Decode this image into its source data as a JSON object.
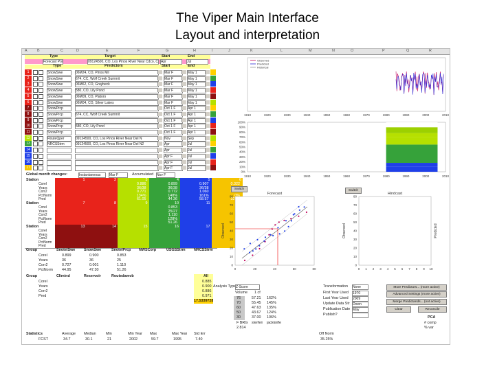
{
  "slide": {
    "title_line1": "The Viper Main Interface",
    "title_line2": "Layout and interpretation"
  },
  "col_letters": [
    "A",
    "B",
    "C",
    "D",
    "E",
    "F",
    "G",
    "H",
    "I",
    "J",
    "K",
    "L",
    "M",
    "N",
    "O",
    "P",
    "Q",
    "R"
  ],
  "headers": {
    "type": "Type",
    "target": "Target",
    "start": "Start",
    "end": "End",
    "predictors": "Predictors"
  },
  "target_row": {
    "type": "Forecast Point",
    "target": "09124500, CO, Los Pinos River Near Cdco, Co",
    "start": "Apr",
    "end": "Jul"
  },
  "predictor_rows": [
    {
      "n": "1",
      "type": "SnowSwe",
      "predictor": "06M24, CO, Pinos Mil",
      "start": "Mar F",
      "end": "May 1"
    },
    {
      "n": "2",
      "type": "SnowSwe",
      "predictor": "674, CC, Wolf Creek Summit",
      "start": "Mar F",
      "end": "May 1"
    },
    {
      "n": "3",
      "type": "SnowSwe",
      "predictor": "06M62, CO, Graybeck",
      "start": "Mar F",
      "end": "May 1"
    },
    {
      "n": "4",
      "type": "SnowSwe",
      "predictor": "580, CO, Lily Pond",
      "start": "Mar F",
      "end": "May 1"
    },
    {
      "n": "5",
      "type": "SnowSwe",
      "predictor": "06M09, CO, Platoro",
      "start": "Mar F",
      "end": "May 1"
    },
    {
      "n": "6",
      "type": "SnowSwe",
      "predictor": "06M04, CO, Silver Lakes",
      "start": "Mar F",
      "end": "May 1"
    },
    {
      "n": "7",
      "type": "SnowPrcp",
      "predictor": "",
      "start": "Oct 1 F",
      "end": "Apr 1"
    },
    {
      "n": "8",
      "type": "SnowPrcp",
      "predictor": "674, CC, Wolf Creek Summit",
      "start": "Oct 1 F",
      "end": "Apr 1"
    },
    {
      "n": "9",
      "type": "SnowPrcp",
      "predictor": "",
      "start": "Oct 1 F",
      "end": "Apr 1"
    },
    {
      "n": "10",
      "type": "SnowPrcp",
      "predictor": "580, CO, Lily Pond",
      "start": "Oct 1 F",
      "end": "Apr 1"
    },
    {
      "n": "11",
      "type": "SnowPrcp",
      "predictor": "",
      "start": "Oct 1 F",
      "end": "Apr 1"
    },
    {
      "n": "12",
      "type": "RouteQper",
      "predictor": "09124500, CO, Los Pinos River Near Del N",
      "start": "Nov",
      "end": "Sep"
    },
    {
      "n": "13",
      "type": "NRCSStrm",
      "predictor": "09124500, CO, Los Pinos River Near Del N2",
      "start": "Apr",
      "end": "Jul"
    },
    {
      "n": "14",
      "type": "",
      "predictor": "",
      "start": "Apr",
      "end": "Jul"
    },
    {
      "n": "15",
      "type": "",
      "predictor": "",
      "start": "Apr F",
      "end": "Jul"
    },
    {
      "n": "16",
      "type": "",
      "predictor": "",
      "start": "Apr F",
      "end": "Jul"
    },
    {
      "n": "17",
      "type": "",
      "predictor": "",
      "start": "Apr F",
      "end": "Jul"
    }
  ],
  "global_row": {
    "label": "Global month changes:",
    "mode": "Instantaneous",
    "month1": "Mar F",
    "accum": "Accumulated",
    "month2": "Nov F"
  },
  "station_block_labels": [
    "Corel",
    "Years",
    "Corr2",
    "PctNorm",
    "Pred"
  ],
  "station_label": "Station",
  "station_numbers": [
    [
      "1",
      "2",
      "3",
      "4",
      "5",
      "6"
    ],
    [
      "7",
      "8",
      "9",
      "10",
      "11",
      "12"
    ],
    [
      "13",
      "14",
      "15",
      "16",
      "17",
      "18"
    ]
  ],
  "station_values_top": [
    [],
    [],
    [],
    [
      "0.886",
      "36/38",
      "0.771",
      "134%",
      "61.05"
    ],
    [
      "0.899",
      "36/38",
      "0.772",
      "148%",
      "44.36"
    ],
    [
      "0.907",
      "36/38",
      "1.060",
      "161%",
      "58.57"
    ]
  ],
  "station_values_top_last": [
    "0.322",
    "36/38",
    "0.368",
    "0%",
    "32.41"
  ],
  "station_values_mid": [
    "0.853",
    "25/27",
    "1.110",
    "128%",
    "51.26"
  ],
  "group_label": "Group",
  "group_names": [
    "SnotelSwe",
    "SnowSwe",
    "SnotelPrcp",
    "NWSCorp",
    "USGSStrm",
    "NRCSStrm"
  ],
  "group_rows": [
    {
      "label": "Corel",
      "values": [
        "0.899",
        "0.900",
        "0.853"
      ]
    },
    {
      "label": "Years",
      "values": [
        "36",
        "36",
        "25"
      ]
    },
    {
      "label": "Corr2",
      "values": [
        "0.727",
        "0.001",
        "1.110"
      ]
    },
    {
      "label": "PctNorm",
      "values": [
        "44.95",
        "47.30",
        "51.26"
      ]
    }
  ],
  "group2_label": "Group",
  "group2_names": [
    "Climind",
    "Reservoir",
    "Routedamvb"
  ],
  "group2_row_labels": [
    "Corel",
    "Years",
    "Corr2",
    "Pred"
  ],
  "all_label": "All",
  "all_values": [
    "0.885",
    "0.900",
    "0.886",
    "0.971"
  ],
  "pred_highlight": "17.5339728",
  "statistics": {
    "label": "Statistics",
    "headers": [
      "Average",
      "Median",
      "Min",
      "Min Year",
      "Max",
      "Max Year",
      "Std Err",
      "Off Norm"
    ],
    "row_label": "FCST",
    "values": [
      "34.7",
      "30.1",
      "21",
      "2002",
      "59.7",
      "1995",
      "7.40",
      "35.25%"
    ]
  },
  "analysis": {
    "type_label": "Analysis Type",
    "type_value": "Z-Score",
    "volume_label": "Volume",
    "volume_value": "1 cf",
    "table": [
      [
        "76",
        "57.21",
        "162%"
      ],
      [
        "70",
        "55.45",
        "145%"
      ],
      [
        "60",
        "47.63",
        "135%"
      ],
      [
        "50",
        "43.67",
        "124%"
      ],
      [
        "30",
        "37.00",
        "106%"
      ]
    ],
    "footer": [
      "F BRG",
      "sterfen",
      "jackknife",
      "2.814"
    ]
  },
  "transformation": {
    "label": "Transformation",
    "value": "None",
    "rows": [
      {
        "label": "First Year Used",
        "value": "1970"
      },
      {
        "label": "Last Year Used",
        "value": "2009"
      },
      {
        "label": "Update Data Str",
        "value": "Down"
      },
      {
        "label": "Publication Date",
        "value": "May"
      },
      {
        "label": "Publish?",
        "value": ""
      }
    ]
  },
  "buttons": {
    "more_predictors": "More Predictors... (more active)",
    "advanced_settings": "Advanced Settings (more active)",
    "merge_predictands": "Merge Predictands... (not active)",
    "clear": "Clear",
    "reconcile": "Reconcile",
    "switch1": "Switch",
    "switch2": "Switch"
  },
  "pca": {
    "label": "PCA",
    "row1": "# comp",
    "row2": "% var"
  },
  "charts": {
    "timeseries": {
      "legend": [
        "Observed",
        "Predicted",
        "Historical"
      ],
      "x_ticks": [
        "1910",
        "1920",
        "1930",
        "1940",
        "1950",
        "1960",
        "1970",
        "1980",
        "1990",
        "2000",
        "2010"
      ],
      "colors": {
        "observed": "#c0005a",
        "predicted": "#2b2bd8",
        "historical": "#9a9a9a"
      }
    },
    "area": {
      "y_ticks": [
        "100%",
        "90%",
        "80%",
        "70%",
        "60%",
        "50%",
        "40%",
        "30%",
        "20%",
        "10%",
        "0%"
      ],
      "x_ticks": [
        "1910",
        "1920",
        "1930",
        "1940",
        "1950",
        "1960",
        "1970",
        "1980",
        "1990",
        "2000",
        "2010"
      ]
    },
    "forecast": {
      "title": "Forecast",
      "ylabel": "Observed",
      "y_ticks": [
        "80",
        "70",
        "60",
        "50",
        "40",
        "30",
        "20",
        "10",
        "0"
      ],
      "x_ticks": [
        "0",
        "20",
        "40",
        "60",
        "80"
      ]
    },
    "hindcast": {
      "title": "Hindcast",
      "ylabel": "Observed",
      "y2label": "Predicted",
      "y_ticks": [
        "80",
        "70",
        "60",
        "50",
        "40",
        "30",
        "20",
        "10",
        "0"
      ],
      "x_ticks": [
        "0",
        "1",
        "2",
        "3",
        "4",
        "5",
        "6",
        "7",
        "8",
        "9",
        "10"
      ]
    }
  },
  "colors": {
    "header_yellow": "#ffff99",
    "target_pink": "#ff99cc",
    "red": "#e8231b",
    "dark_red": "#8e1010",
    "lime": "#b6e000",
    "green": "#36a23a",
    "blue": "#1f3fe8",
    "gold": "#f6c400"
  }
}
